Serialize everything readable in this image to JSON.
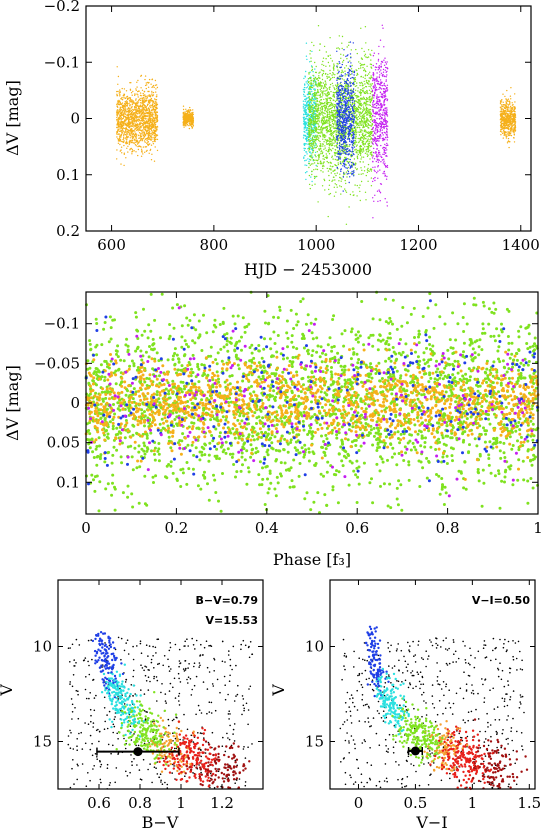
{
  "colors": {
    "orange": "#f5b01a",
    "green": "#7fe21f",
    "cyan": "#2be0e0",
    "blue": "#1f3fe6",
    "purple": "#c41ff0",
    "black": "#000000",
    "red": "#e8201a",
    "darkred": "#a01010",
    "lightorange": "#f4a030"
  },
  "chart_data": [
    {
      "type": "scatter",
      "id": "light-curve",
      "xlabel": "HJD − 2453000",
      "ylabel": "ΔV [mag]",
      "xlim": [
        550,
        1420
      ],
      "ylim": [
        0.2,
        -0.2
      ],
      "y_inverted": true,
      "xticks": [
        600,
        800,
        1000,
        1200,
        1400
      ],
      "xtick_labels": [
        "600",
        "800",
        "1000",
        "1200",
        "1400"
      ],
      "yticks": [
        -0.2,
        -0.1,
        0,
        0.1,
        0.2
      ],
      "ytick_labels": [
        "−0.2",
        "−0.1",
        "0",
        "0.1",
        "0.2"
      ],
      "series": [
        {
          "color": "orange",
          "segments": [
            [
              610,
              690,
              0.08
            ],
            [
              740,
              760,
              0.02
            ],
            [
              1360,
              1390,
              0.05
            ]
          ]
        },
        {
          "color": "cyan",
          "segments": [
            [
              975,
              1000,
              0.12
            ]
          ]
        },
        {
          "color": "green",
          "segments": [
            [
              985,
              1110,
              0.16
            ]
          ]
        },
        {
          "color": "blue",
          "segments": [
            [
              1040,
              1075,
              0.14
            ]
          ]
        },
        {
          "color": "purple",
          "segments": [
            [
              1110,
              1140,
              0.18
            ]
          ]
        }
      ]
    },
    {
      "type": "scatter",
      "id": "phased-curve",
      "xlabel": "Phase [f₃]",
      "ylabel": "ΔV [mag]",
      "xlim": [
        0,
        1
      ],
      "ylim": [
        0.14,
        -0.14
      ],
      "y_inverted": true,
      "xticks": [
        0,
        0.2,
        0.4,
        0.6,
        0.8,
        1
      ],
      "xtick_labels": [
        "0",
        "0.2",
        "0.4",
        "0.6",
        "0.8",
        "1"
      ],
      "yticks": [
        -0.1,
        -0.05,
        0,
        0.05,
        0.1
      ],
      "ytick_labels": [
        "−0.1",
        "−0.05",
        "0",
        "0.05",
        "0.1"
      ],
      "series": [
        {
          "color": "green",
          "spread": 0.13
        },
        {
          "color": "orange",
          "spread": 0.06
        },
        {
          "color": "blue",
          "spread": 0.1
        },
        {
          "color": "purple",
          "spread": 0.1
        }
      ]
    },
    {
      "type": "scatter",
      "id": "cmd-bv",
      "xlabel": "B−V",
      "ylabel": "V",
      "xlim": [
        0.4,
        1.4
      ],
      "ylim": [
        17.5,
        6.5
      ],
      "y_inverted": true,
      "xticks": [
        0.6,
        0.8,
        1,
        1.2
      ],
      "xtick_labels": [
        "0.6",
        "0.8",
        "1",
        "1.2"
      ],
      "yticks": [
        10,
        15
      ],
      "ytick_labels": [
        "10",
        "15"
      ],
      "annotations": [
        "B−V=0.79",
        "V=15.53"
      ],
      "highlight": {
        "x": 0.79,
        "y": 15.53,
        "xerr": 0.2
      },
      "sequence": [
        [
          0.6,
          9.2
        ],
        [
          0.66,
          11.5
        ],
        [
          0.72,
          13.3
        ],
        [
          0.82,
          14.5
        ],
        [
          0.95,
          15.3
        ],
        [
          1.05,
          16.0
        ],
        [
          1.25,
          16.5
        ]
      ]
    },
    {
      "type": "scatter",
      "id": "cmd-vi",
      "xlabel": "V−I",
      "ylabel": "V",
      "xlim": [
        -0.25,
        1.55
      ],
      "ylim": [
        17.5,
        6.5
      ],
      "y_inverted": true,
      "xticks": [
        0,
        0.5,
        1,
        1.5
      ],
      "xtick_labels": [
        "0",
        "0.5",
        "1",
        "1.5"
      ],
      "yticks": [
        10,
        15
      ],
      "ytick_labels": [
        "10",
        "15"
      ],
      "annotations": [
        "V−I=0.50"
      ],
      "highlight": {
        "x": 0.5,
        "y": 15.5,
        "xerr": 0.06
      },
      "sequence": [
        [
          0.1,
          9.2
        ],
        [
          0.17,
          11.5
        ],
        [
          0.3,
          13.3
        ],
        [
          0.5,
          14.6
        ],
        [
          0.75,
          15.4
        ],
        [
          0.95,
          16.0
        ],
        [
          1.3,
          16.6
        ]
      ]
    }
  ]
}
